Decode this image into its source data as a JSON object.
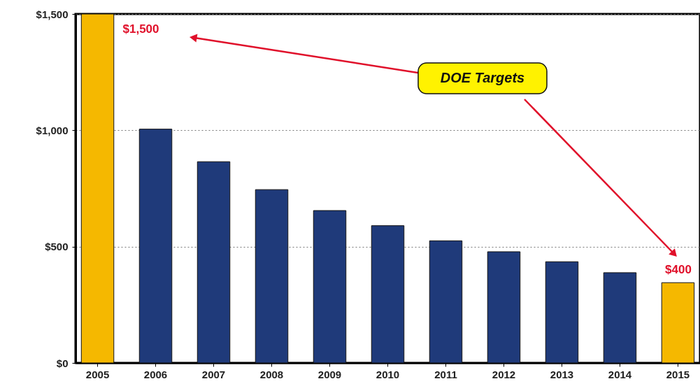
{
  "chart_data": {
    "type": "bar",
    "categories": [
      "2005",
      "2006",
      "2007",
      "2008",
      "2009",
      "2010",
      "2011",
      "2012",
      "2013",
      "2014",
      "2015"
    ],
    "values": [
      1500,
      1005,
      865,
      745,
      655,
      590,
      525,
      478,
      435,
      388,
      345
    ],
    "colors": [
      "#f5b800",
      "#1f3a7a",
      "#1f3a7a",
      "#1f3a7a",
      "#1f3a7a",
      "#1f3a7a",
      "#1f3a7a",
      "#1f3a7a",
      "#1f3a7a",
      "#1f3a7a",
      "#f5b800"
    ],
    "ylim": [
      0,
      1500
    ],
    "yticks": [
      {
        "value": 0,
        "label": "$0"
      },
      {
        "value": 500,
        "label": "$500"
      },
      {
        "value": 1000,
        "label": "$1,000"
      },
      {
        "value": 1500,
        "label": "$1,500"
      }
    ],
    "grid": "y",
    "annotations": [
      "DOE Targets",
      {
        "text": "$1,500",
        "x": "2005",
        "y": 1500
      },
      "$400"
    ]
  }
}
